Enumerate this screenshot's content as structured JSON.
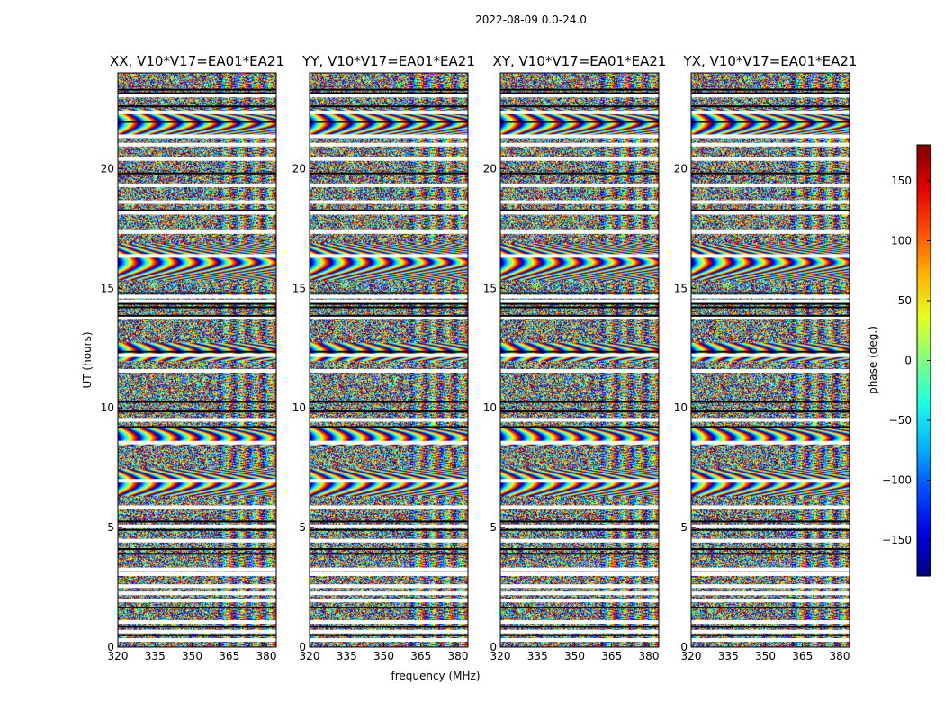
{
  "chart_data": {
    "type": "heatmap",
    "title": "2022-08-09 0.0-24.0",
    "xlabel": "frequency (MHz)",
    "ylabel": "UT (hours)",
    "xlim": [
      320,
      384
    ],
    "ylim": [
      0,
      24
    ],
    "x_ticks": [
      320,
      335,
      350,
      365,
      380
    ],
    "y_ticks": [
      0,
      5,
      10,
      15,
      20
    ],
    "panels": [
      {
        "title": "XX, V10*V17=EA01*EA21",
        "polarization": "XX"
      },
      {
        "title": "YY, V10*V17=EA01*EA21",
        "polarization": "YY"
      },
      {
        "title": "XY, V10*V17=EA01*EA21",
        "polarization": "XY"
      },
      {
        "title": "YX, V10*V17=EA01*EA21",
        "polarization": "YX"
      }
    ],
    "colorbar": {
      "label": "phase (deg.)",
      "vmin": -180,
      "vmax": 180,
      "ticks": [
        -150,
        -100,
        -50,
        0,
        50,
        100,
        150
      ],
      "colormap": "jet"
    }
  },
  "colors": {
    "background": "#ffffff",
    "axis": "#000000",
    "flagged": "#ffffff"
  }
}
